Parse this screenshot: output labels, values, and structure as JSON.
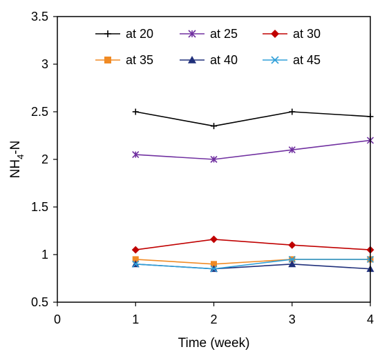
{
  "chart_data": {
    "type": "line",
    "xlabel": "Time (week)",
    "ylabel": {
      "main": "NH",
      "sub": "4",
      "rest": "-N"
    },
    "xlim": [
      0,
      4
    ],
    "ylim": [
      0.5,
      3.5
    ],
    "x_ticks": [
      "0",
      "1",
      "2",
      "3",
      "4"
    ],
    "y_ticks": [
      "0.5",
      "1",
      "1.5",
      "2",
      "2.5",
      "3",
      "3.5"
    ],
    "x": [
      1,
      2,
      3,
      4
    ],
    "grid": false,
    "legend_position": "top",
    "series": [
      {
        "name": "at 20",
        "color": "#000000",
        "marker": "plus",
        "values": [
          2.5,
          2.35,
          2.5,
          2.45
        ]
      },
      {
        "name": "at 25",
        "color": "#7030A0",
        "marker": "asterisk",
        "values": [
          2.05,
          2.0,
          2.1,
          2.2
        ]
      },
      {
        "name": "at 30",
        "color": "#C00000",
        "marker": "diamond",
        "values": [
          1.05,
          1.16,
          1.1,
          1.05
        ]
      },
      {
        "name": "at 35",
        "color": "#F08A24",
        "marker": "square",
        "values": [
          0.95,
          0.9,
          0.95,
          0.95
        ]
      },
      {
        "name": "at 40",
        "color": "#1F2F7A",
        "marker": "triangle",
        "values": [
          0.9,
          0.85,
          0.9,
          0.85
        ]
      },
      {
        "name": "at 45",
        "color": "#2E9FD8",
        "marker": "cross",
        "values": [
          0.9,
          0.85,
          0.95,
          0.95
        ]
      }
    ]
  }
}
